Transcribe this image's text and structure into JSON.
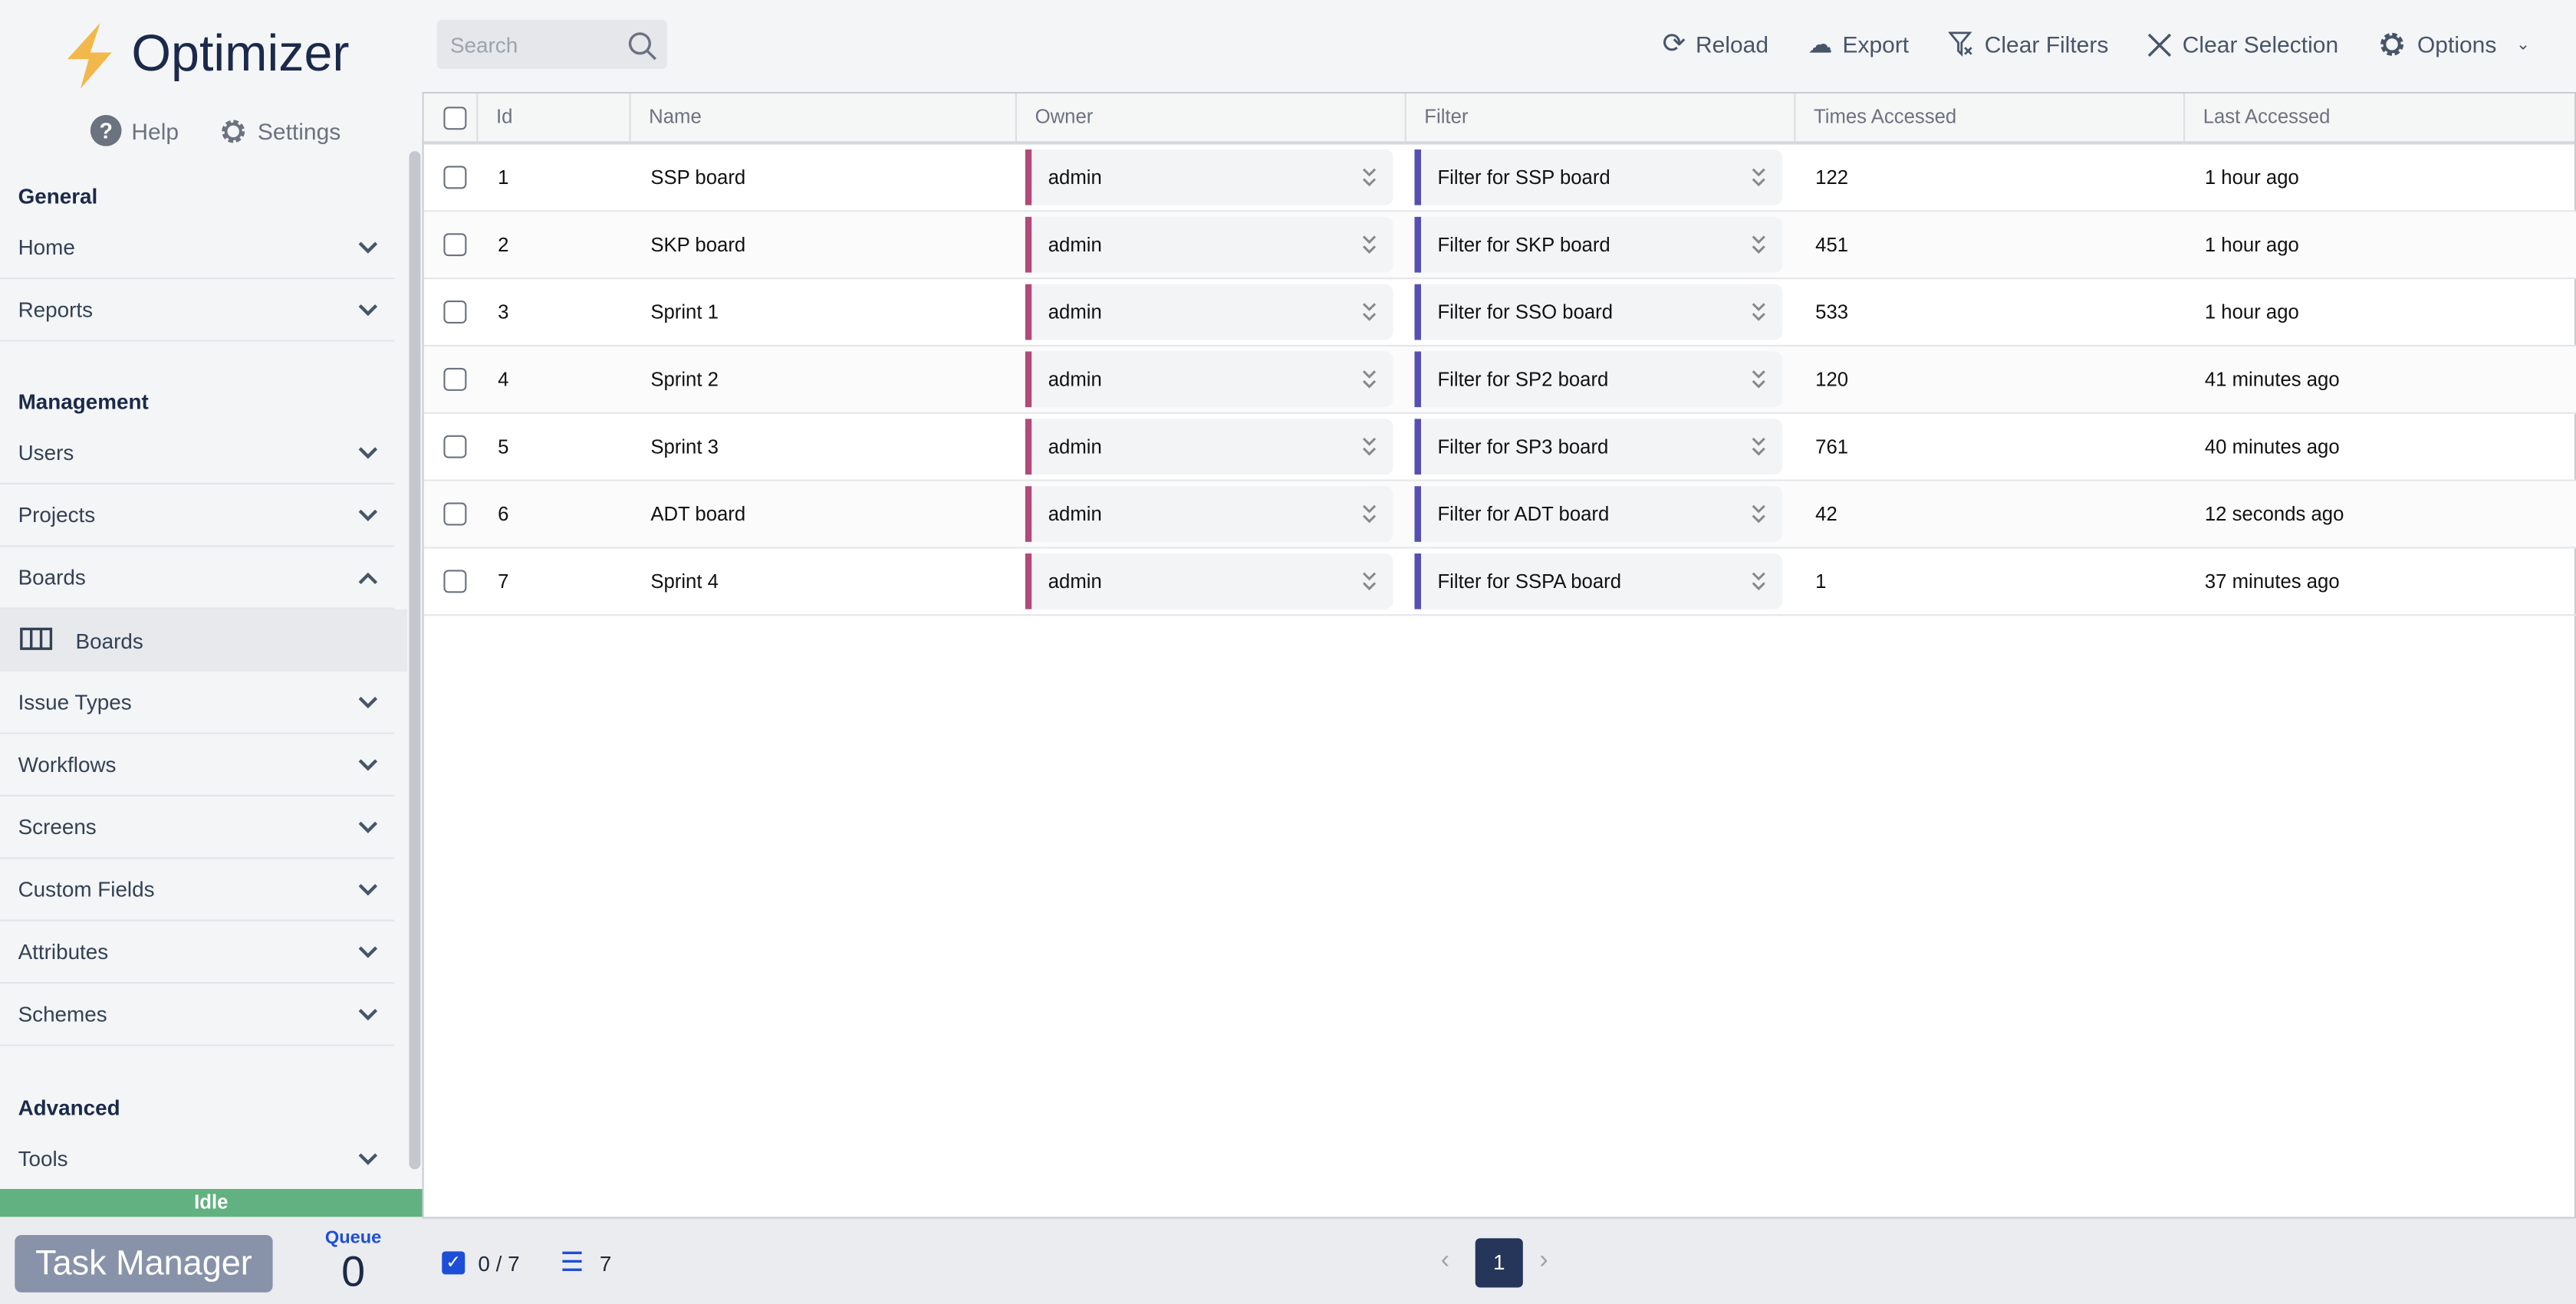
{
  "app": {
    "title": "Optimizer",
    "help": "Help",
    "settings": "Settings"
  },
  "sidebar": {
    "sections": [
      {
        "label": "General",
        "items": [
          {
            "label": "Home",
            "expanded": false
          },
          {
            "label": "Reports",
            "expanded": false
          }
        ]
      },
      {
        "label": "Management",
        "items": [
          {
            "label": "Users",
            "expanded": false
          },
          {
            "label": "Projects",
            "expanded": false
          },
          {
            "label": "Boards",
            "expanded": true,
            "children": [
              {
                "label": "Boards",
                "icon": "board-columns-icon",
                "active": true
              }
            ]
          },
          {
            "label": "Issue Types",
            "expanded": false
          },
          {
            "label": "Workflows",
            "expanded": false
          },
          {
            "label": "Screens",
            "expanded": false
          },
          {
            "label": "Custom Fields",
            "expanded": false
          },
          {
            "label": "Attributes",
            "expanded": false
          },
          {
            "label": "Schemes",
            "expanded": false
          }
        ]
      },
      {
        "label": "Advanced",
        "items": [
          {
            "label": "Tools",
            "expanded": false
          }
        ]
      }
    ],
    "status": "Idle",
    "status_color": "#62b180",
    "task_manager": "Task Manager",
    "queue_label": "Queue",
    "queue_value": "0"
  },
  "search": {
    "placeholder": "Search"
  },
  "toolbar": {
    "reload": "Reload",
    "export": "Export",
    "clear_filters": "Clear Filters",
    "clear_selection": "Clear Selection",
    "options": "Options"
  },
  "table": {
    "columns": [
      "Id",
      "Name",
      "Owner",
      "Filter",
      "Times Accessed",
      "Last Accessed"
    ],
    "owner_color": "#b04a7a",
    "filter_color": "#5550b0",
    "rows": [
      {
        "id": "1",
        "name": "SSP board",
        "owner": "admin",
        "filter": "Filter for SSP board",
        "times": "122",
        "last": "1 hour ago"
      },
      {
        "id": "2",
        "name": "SKP board",
        "owner": "admin",
        "filter": "Filter for SKP board",
        "times": "451",
        "last": "1 hour ago"
      },
      {
        "id": "3",
        "name": "Sprint 1",
        "owner": "admin",
        "filter": "Filter for SSO board",
        "times": "533",
        "last": "1 hour ago"
      },
      {
        "id": "4",
        "name": "Sprint 2",
        "owner": "admin",
        "filter": "Filter for SP2 board",
        "times": "120",
        "last": "41 minutes ago"
      },
      {
        "id": "5",
        "name": "Sprint 3",
        "owner": "admin",
        "filter": "Filter for SP3 board",
        "times": "761",
        "last": "40 minutes ago"
      },
      {
        "id": "6",
        "name": "ADT board",
        "owner": "admin",
        "filter": "Filter for ADT board",
        "times": "42",
        "last": "12 seconds ago"
      },
      {
        "id": "7",
        "name": "Sprint 4",
        "owner": "admin",
        "filter": "Filter for SSPA board",
        "times": "1",
        "last": "37 minutes ago"
      }
    ]
  },
  "footer": {
    "selected": "0 / 7",
    "total": "7",
    "page": "1"
  }
}
